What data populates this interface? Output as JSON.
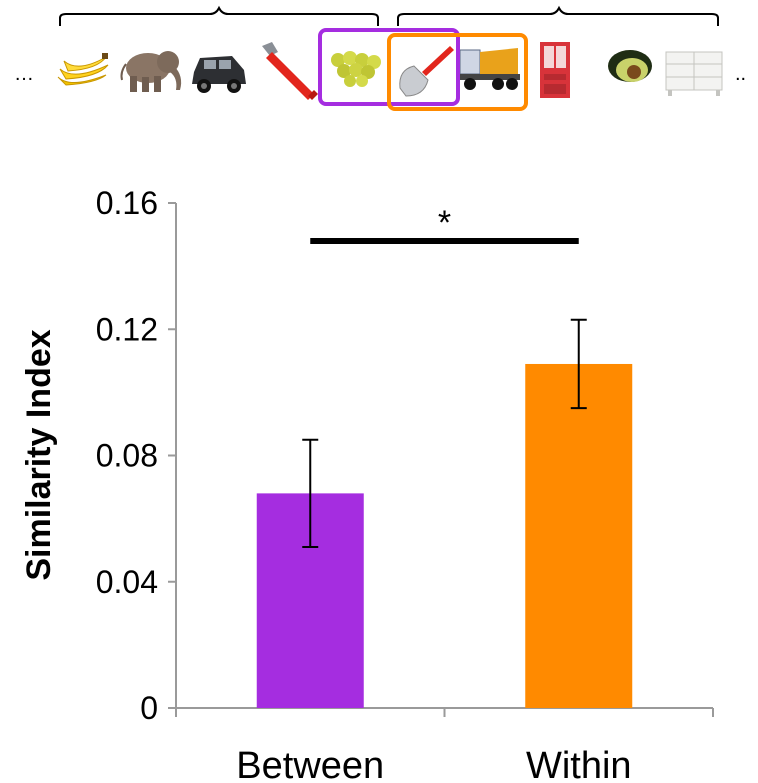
{
  "strip": {
    "left_ellipsis": "…",
    "right_ellipsis": "..",
    "items": [
      {
        "name": "bananas-icon",
        "kind": "bananas"
      },
      {
        "name": "elephant-icon",
        "kind": "elephant"
      },
      {
        "name": "suv-icon",
        "kind": "suv"
      },
      {
        "name": "pipe-wrench-icon",
        "kind": "wrench"
      },
      {
        "name": "grapes-icon",
        "kind": "grapes"
      },
      {
        "name": "trowel-icon",
        "kind": "trowel"
      },
      {
        "name": "dump-truck-icon",
        "kind": "truck"
      },
      {
        "name": "red-cabinet-icon",
        "kind": "cabinet"
      },
      {
        "name": "avocado-icon",
        "kind": "avocado"
      },
      {
        "name": "white-dresser-icon",
        "kind": "dresser"
      }
    ],
    "colors": {
      "between": "#a52de0",
      "within": "#ff8a00"
    }
  },
  "chart_data": {
    "type": "bar",
    "categories": [
      "Between",
      "Within"
    ],
    "values": [
      0.068,
      0.109
    ],
    "errors": [
      0.017,
      0.014
    ],
    "colors": [
      "#a52de0",
      "#ff8a00"
    ],
    "ylabel": "Similarity Index",
    "ylim": [
      0,
      0.16
    ],
    "yticks": [
      0,
      0.04,
      0.08,
      0.12,
      0.16
    ],
    "ytick_labels": [
      "0",
      "0.04",
      "0.08",
      "0.12",
      "0.16"
    ],
    "significance": {
      "label": "*",
      "between": [
        "Between",
        "Within"
      ]
    },
    "grid": false
  }
}
